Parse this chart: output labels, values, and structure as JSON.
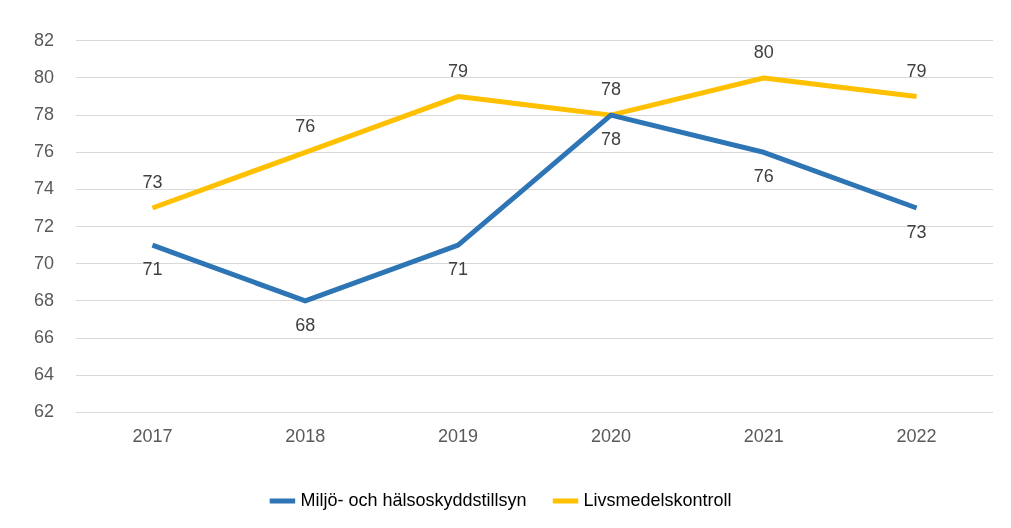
{
  "chart_data": {
    "type": "line",
    "categories": [
      "2017",
      "2018",
      "2019",
      "2020",
      "2021",
      "2022"
    ],
    "series": [
      {
        "name": "Miljö- och hälsoskyddstillsyn",
        "color": "#2e75b6",
        "values": [
          71,
          68,
          71,
          78,
          76,
          73
        ]
      },
      {
        "name": "Livsmedelskontroll",
        "color": "#ffc000",
        "values": [
          73,
          76,
          79,
          78,
          80,
          79
        ]
      }
    ],
    "ylim": [
      62,
      82
    ],
    "yticks": [
      62,
      64,
      66,
      68,
      70,
      72,
      74,
      76,
      78,
      80,
      82
    ],
    "grid": "y",
    "legend": "bottom",
    "data_labels": true,
    "marker": "none",
    "line_style": "solid"
  }
}
